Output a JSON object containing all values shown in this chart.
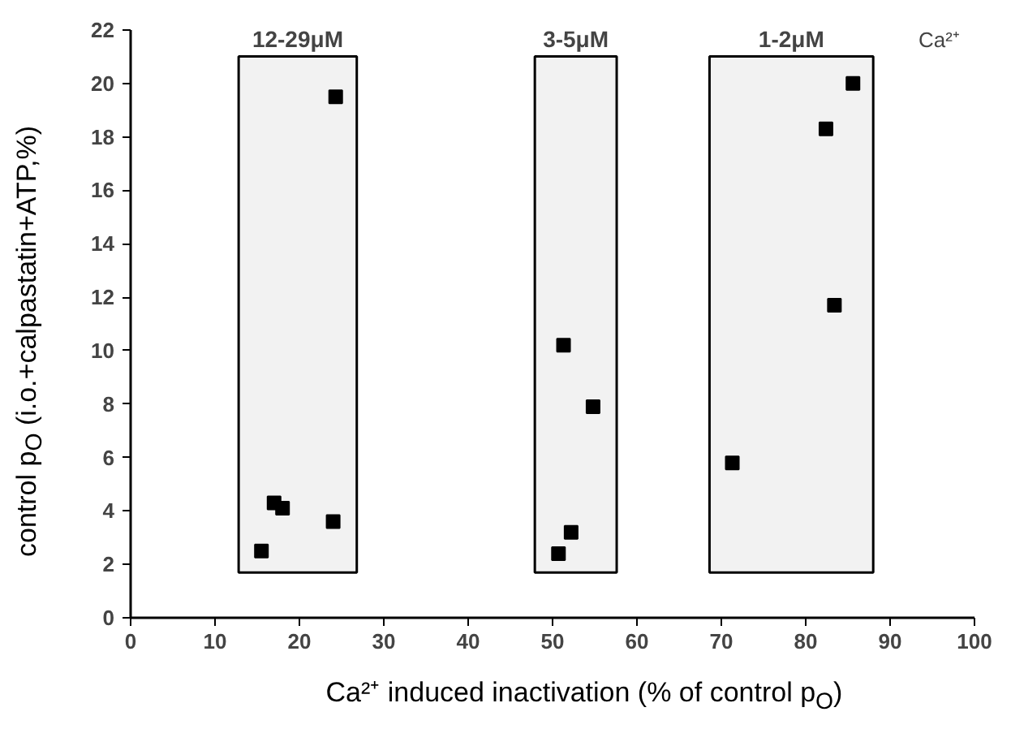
{
  "chart_data": {
    "type": "scatter",
    "xlabel": "Ca²⁺ induced inactivation  (% of control p$_{O}$)",
    "ylabel": "control p$_{O}$  (i.o.+calpastatin+ATP,%)",
    "x": [
      15.5,
      17.0,
      18.0,
      24.0,
      24.3,
      50.7,
      52.2,
      51.3,
      54.8,
      71.3,
      83.4,
      82.4,
      85.6
    ],
    "values": [
      2.5,
      4.3,
      4.1,
      3.6,
      19.5,
      2.4,
      3.2,
      10.2,
      7.9,
      5.8,
      11.7,
      18.3,
      20.0
    ],
    "color": "#000000",
    "marker": "square",
    "xlim": [
      0,
      100
    ],
    "ylim": [
      0,
      22
    ],
    "xticks": [
      0,
      10,
      20,
      30,
      40,
      50,
      60,
      70,
      80,
      90,
      100
    ],
    "yticks": [
      0,
      2,
      4,
      6,
      8,
      10,
      12,
      14,
      16,
      18,
      20,
      22
    ],
    "bands": [
      {
        "axis": "x",
        "from": 12.8,
        "to": 26.8,
        "label": "12-29μM"
      },
      {
        "axis": "x",
        "from": 47.9,
        "to": 57.6,
        "label": "3-5μM"
      },
      {
        "axis": "x",
        "from": 68.6,
        "to": 88.0,
        "label": "1-2μM"
      }
    ],
    "annotations": [
      "Ca²⁺"
    ],
    "grid": false
  }
}
